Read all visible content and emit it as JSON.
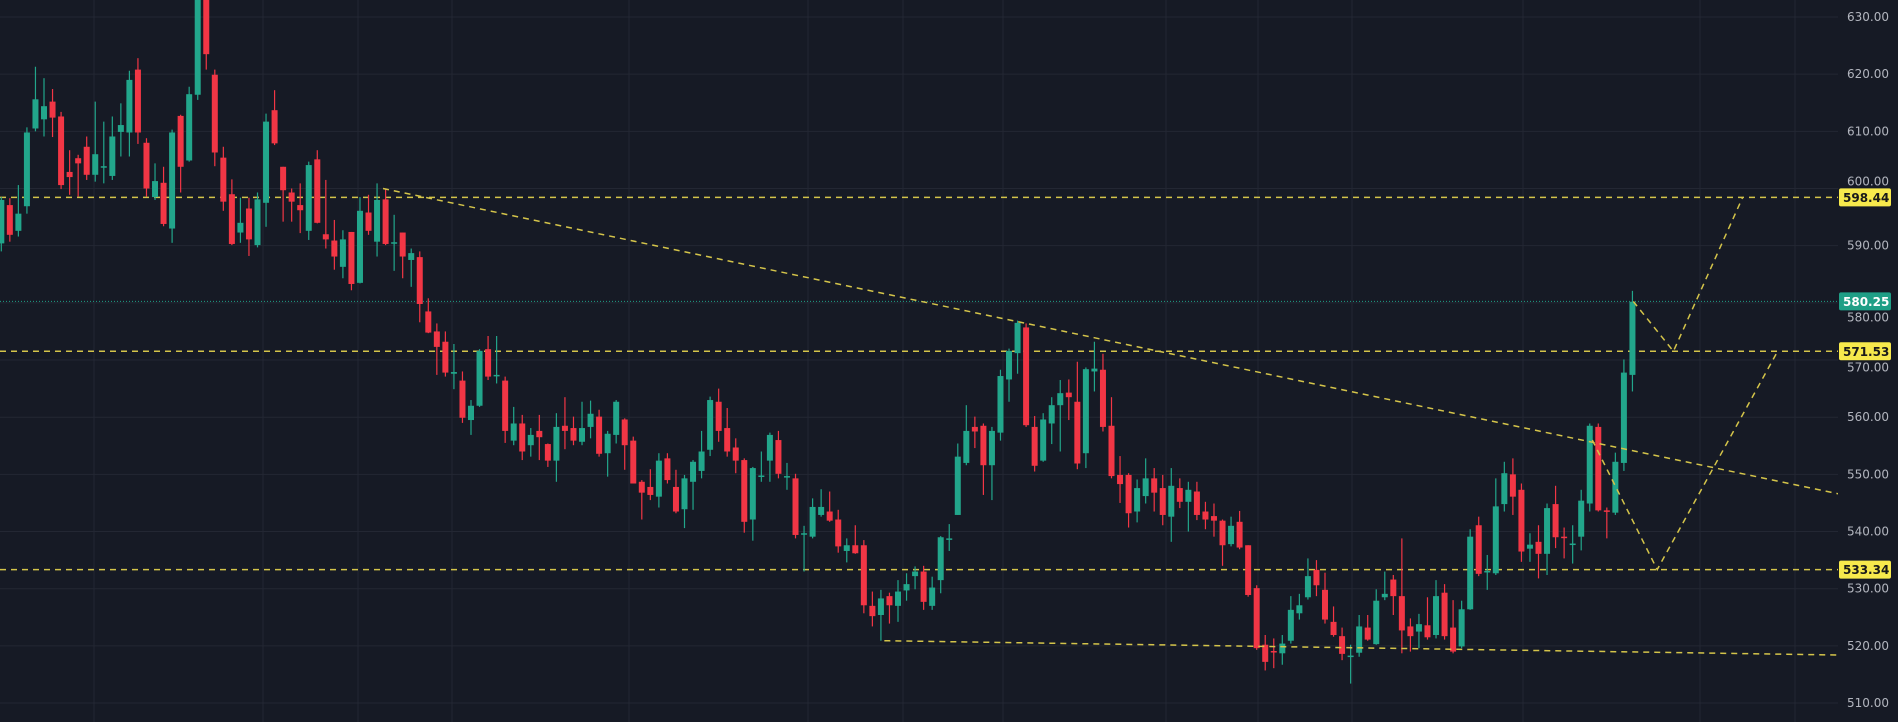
{
  "chart_data": {
    "type": "candlestick",
    "title": "",
    "xlabel": "",
    "ylabel": "",
    "ylim": [
      506,
      633
    ],
    "grid": true,
    "colors": {
      "background": "#161a25",
      "up": "#22a68b",
      "down": "#f23645",
      "grid": "#232733",
      "drawing": "#d4c44a",
      "tag_yellow": "#f7e94c",
      "tag_green": "#1f9f86",
      "axis_text": "#b2b5be"
    },
    "y_ticks": [
      "630.00",
      "620.00",
      "610.00",
      "600.00",
      "590.00",
      "580.00",
      "570.00",
      "560.00",
      "550.00",
      "540.00",
      "530.00",
      "520.00",
      "510.00"
    ],
    "price_tags": [
      {
        "value": 598.44,
        "label": "598.44",
        "style": "yellow"
      },
      {
        "value": 580.25,
        "label": "580.25",
        "style": "green"
      },
      {
        "value": 571.53,
        "label": "571.53",
        "style": "yellow"
      },
      {
        "value": 533.34,
        "label": "533.34",
        "style": "yellow"
      }
    ],
    "current_price": 580.25,
    "horizontal_levels": [
      598.44,
      571.53,
      533.34
    ],
    "trendlines": [
      {
        "name": "descending-resistance",
        "points": [
          [
            44.7,
            600.0
          ],
          [
            215.1,
            546.6
          ]
        ]
      },
      {
        "name": "support",
        "points": [
          [
            103.4,
            520.9
          ],
          [
            215.1,
            518.4
          ]
        ]
      },
      {
        "name": "projection-upper",
        "points": [
          [
            191.1,
            580.25
          ],
          [
            195.8,
            571.53
          ],
          [
            203.9,
            598.44
          ]
        ]
      },
      {
        "name": "projection-lower",
        "points": [
          [
            186.3,
            556.0
          ],
          [
            193.9,
            533.34
          ],
          [
            208.0,
            571.53
          ]
        ]
      }
    ],
    "ohlc_format": [
      "open",
      "high",
      "low",
      "close"
    ],
    "candles": [
      [
        590.4,
        598.5,
        589,
        598
      ],
      [
        597.1,
        598.3,
        590.7,
        591.9
      ],
      [
        592.6,
        600.6,
        591.6,
        595.6
      ],
      [
        596.9,
        610.7,
        595.6,
        609.8
      ],
      [
        610.5,
        621.3,
        610,
        615.6
      ],
      [
        612.1,
        619.3,
        609.1,
        614.4
      ],
      [
        615.2,
        617.4,
        609,
        612.4
      ],
      [
        612.6,
        613.4,
        599.9,
        600.6
      ],
      [
        602.9,
        606.7,
        598.9,
        602.0
      ],
      [
        605.3,
        605.9,
        598.6,
        604.4
      ],
      [
        607.3,
        609.1,
        601.5,
        602.4
      ],
      [
        602.4,
        615.2,
        601.2,
        606.0
      ],
      [
        603.7,
        611.7,
        600.9,
        603.9
      ],
      [
        602.2,
        612.6,
        601.5,
        609.1
      ],
      [
        609.9,
        614.9,
        605.6,
        611.1
      ],
      [
        609.8,
        620.6,
        605.6,
        619.0
      ],
      [
        620.8,
        622.8,
        607.8,
        609.8
      ],
      [
        608.0,
        608.8,
        598.6,
        600.0
      ],
      [
        598.5,
        604.4,
        598.0,
        601.3
      ],
      [
        601.0,
        603.8,
        593.4,
        593.8
      ],
      [
        593.0,
        610.3,
        590.5,
        609.8
      ],
      [
        612.7,
        612.9,
        599.3,
        603.8
      ],
      [
        604.9,
        617.8,
        604.7,
        616.5
      ],
      [
        616.4,
        636,
        615.5,
        634
      ],
      [
        636,
        637,
        620.8,
        623.5
      ],
      [
        619.9,
        620.8,
        603.9,
        606.3
      ],
      [
        605.4,
        607.3,
        596.1,
        597.7
      ],
      [
        599.0,
        601.6,
        590.1,
        590.3
      ],
      [
        592.3,
        598.4,
        590.5,
        594.0
      ],
      [
        596.5,
        598.4,
        588.2,
        591.1
      ],
      [
        590.1,
        599.3,
        589.7,
        598.1
      ],
      [
        597.5,
        613.1,
        593.3,
        611.7
      ],
      [
        613.7,
        617.2,
        607.6,
        607.9
      ],
      [
        603.8,
        603.8,
        594.2,
        599.7
      ],
      [
        599.3,
        600.0,
        594.2,
        597.7
      ],
      [
        597.1,
        600.9,
        592.2,
        596.2
      ],
      [
        592.6,
        604.7,
        591.0,
        604.1
      ],
      [
        605.1,
        606.7,
        593.9,
        594.0
      ],
      [
        592.0,
        601.5,
        589.5,
        591.1
      ],
      [
        590.9,
        594.5,
        585.8,
        588.1
      ],
      [
        586.3,
        592.7,
        584.3,
        591.1
      ],
      [
        592.4,
        592.4,
        582.2,
        583.3
      ],
      [
        583.5,
        598.5,
        583.4,
        596.1
      ],
      [
        595.8,
        598.9,
        591.9,
        592.6
      ],
      [
        590.7,
        600.9,
        588.1,
        598.0
      ],
      [
        598.1,
        600.0,
        590.1,
        590.3
      ],
      [
        590.5,
        595.4,
        585.6,
        590.6
      ],
      [
        592.3,
        592.3,
        584.3,
        588.1
      ],
      [
        587.5,
        589.5,
        582.8,
        588.7
      ],
      [
        588.0,
        589.0,
        576.6,
        579.8
      ],
      [
        578.5,
        580.8,
        574.7,
        574.8
      ],
      [
        575.0,
        576.4,
        567.4,
        572.3
      ],
      [
        573.2,
        575.0,
        567.1,
        567.8
      ],
      [
        567.6,
        572.8,
        564.9,
        567.9
      ],
      [
        566.4,
        568.0,
        559.0,
        559.9
      ],
      [
        559.5,
        563.0,
        556.9,
        562.0
      ],
      [
        562.0,
        571.9,
        561.8,
        571.6
      ],
      [
        571.9,
        574.2,
        566.5,
        567.1
      ],
      [
        567.2,
        574.2,
        565.9,
        567.4
      ],
      [
        566.4,
        567.1,
        555.5,
        557.6
      ],
      [
        555.9,
        561.8,
        555.1,
        558.9
      ],
      [
        558.9,
        560.4,
        552.5,
        554.0
      ],
      [
        555.1,
        558.1,
        553.1,
        556.9
      ],
      [
        557.6,
        560.4,
        552.5,
        556.5
      ],
      [
        555.3,
        555.4,
        551.3,
        552.4
      ],
      [
        552.4,
        560.7,
        548.7,
        558.3
      ],
      [
        558.5,
        563.5,
        554.4,
        557.6
      ],
      [
        558.1,
        560.1,
        555.1,
        555.9
      ],
      [
        555.7,
        562.7,
        555.1,
        558.1
      ],
      [
        558.3,
        562.9,
        556.3,
        560.6
      ],
      [
        560.1,
        561.3,
        553.1,
        553.6
      ],
      [
        553.7,
        557.6,
        549.6,
        557.1
      ],
      [
        556.9,
        563.0,
        555.4,
        562.7
      ],
      [
        559.6,
        559.8,
        550.8,
        555.1
      ],
      [
        555.9,
        556.6,
        548.4,
        548.4
      ],
      [
        548.7,
        549.0,
        542.1,
        546.8
      ],
      [
        547.8,
        550.9,
        545.5,
        546.4
      ],
      [
        546.1,
        553.7,
        544.2,
        552.4
      ],
      [
        552.8,
        553.7,
        548.4,
        549.0
      ],
      [
        547.8,
        550.8,
        543.2,
        543.5
      ],
      [
        543.9,
        549.9,
        540.6,
        549.3
      ],
      [
        548.7,
        552.5,
        543.8,
        552.2
      ],
      [
        550.6,
        557.6,
        549.3,
        554.0
      ],
      [
        554.3,
        563.6,
        553.2,
        563.0
      ],
      [
        562.7,
        565.0,
        555.7,
        557.6
      ],
      [
        558.1,
        561.6,
        553.1,
        554.0
      ],
      [
        554.7,
        556.3,
        550.2,
        552.4
      ],
      [
        552.5,
        552.8,
        539.8,
        541.7
      ],
      [
        542.1,
        551.3,
        538.4,
        551.1
      ],
      [
        549.6,
        554.0,
        548.7,
        549.8
      ],
      [
        552.4,
        557.3,
        548.7,
        556.9
      ],
      [
        556.0,
        557.6,
        549.3,
        550.1
      ],
      [
        549.5,
        552.0,
        547.3,
        549.7
      ],
      [
        549.3,
        550.1,
        538.8,
        539.4
      ],
      [
        539.6,
        541.0,
        533.0,
        539.7
      ],
      [
        539.1,
        545.8,
        538.8,
        544.3
      ],
      [
        542.9,
        547.4,
        542.6,
        544.3
      ],
      [
        543.5,
        547.0,
        541.7,
        541.9
      ],
      [
        542.1,
        543.8,
        536.3,
        537.4
      ],
      [
        536.6,
        538.8,
        534.6,
        537.6
      ],
      [
        537.6,
        541.1,
        536.1,
        536.2
      ],
      [
        537.6,
        538.5,
        525.7,
        527.1
      ],
      [
        527.0,
        529.5,
        523.4,
        525.2
      ],
      [
        525.4,
        529.8,
        520.9,
        528.3
      ],
      [
        528.7,
        529.3,
        523.9,
        527.1
      ],
      [
        527.0,
        531.5,
        524.2,
        529.5
      ],
      [
        529.7,
        532.7,
        527.9,
        530.8
      ],
      [
        532.2,
        533.9,
        529.9,
        533.0
      ],
      [
        533.0,
        534.0,
        526.3,
        527.7
      ],
      [
        527.0,
        532.1,
        526.3,
        530.2
      ],
      [
        531.5,
        539.2,
        529.2,
        539.0
      ],
      [
        538.6,
        541.3,
        536.6,
        538.8
      ],
      [
        542.9,
        555.4,
        542.9,
        553.1
      ],
      [
        552.0,
        562.1,
        551.6,
        557.6
      ],
      [
        558.3,
        560.1,
        554.6,
        557.5
      ],
      [
        558.5,
        558.9,
        546.4,
        551.6
      ],
      [
        551.6,
        558.3,
        545.5,
        557.6
      ],
      [
        557.3,
        568.3,
        555.9,
        567.2
      ],
      [
        566.6,
        572.0,
        562.7,
        571.6
      ],
      [
        571.2,
        576.9,
        567.6,
        576.5
      ],
      [
        575.7,
        576.4,
        558.3,
        558.6
      ],
      [
        558.3,
        560.2,
        550.5,
        551.5
      ],
      [
        552.4,
        560.7,
        552.2,
        559.6
      ],
      [
        558.9,
        563.5,
        555.3,
        562.1
      ],
      [
        562.1,
        566.5,
        554.0,
        564.2
      ],
      [
        564.3,
        566.6,
        559.5,
        563.5
      ],
      [
        562.7,
        569.7,
        550.9,
        551.9
      ],
      [
        553.7,
        568.7,
        551.1,
        568.4
      ],
      [
        568.0,
        573.2,
        564.5,
        568.5
      ],
      [
        568.3,
        571.1,
        557.5,
        558.3
      ],
      [
        558.5,
        563.5,
        549.3,
        549.7
      ],
      [
        549.9,
        553.2,
        545.0,
        548.3
      ],
      [
        549.9,
        550.2,
        540.7,
        543.2
      ],
      [
        543.5,
        549.1,
        541.6,
        547.6
      ],
      [
        546.2,
        552.8,
        544.9,
        549.3
      ],
      [
        549.3,
        551.1,
        543.5,
        546.8
      ],
      [
        547.6,
        549.9,
        541.1,
        542.9
      ],
      [
        542.6,
        551.1,
        538.2,
        548.0
      ],
      [
        547.6,
        549.3,
        544.1,
        545.2
      ],
      [
        545.2,
        548.7,
        540.0,
        547.3
      ],
      [
        547.0,
        548.7,
        542.0,
        542.9
      ],
      [
        543.5,
        545.2,
        540.4,
        542.1
      ],
      [
        542.7,
        544.9,
        539.1,
        541.9
      ],
      [
        541.9,
        542.1,
        534.0,
        537.6
      ],
      [
        537.8,
        542.6,
        537.4,
        541.0
      ],
      [
        541.7,
        543.6,
        536.9,
        537.2
      ],
      [
        537.6,
        537.6,
        528.6,
        528.9
      ],
      [
        530.1,
        530.6,
        519.3,
        519.6
      ],
      [
        520.2,
        521.9,
        515.7,
        517.2
      ],
      [
        519.1,
        521.3,
        516.1,
        518.9
      ],
      [
        518.7,
        521.9,
        516.7,
        520.4
      ],
      [
        520.9,
        528.7,
        520.4,
        526.3
      ],
      [
        525.7,
        529.1,
        524.6,
        527.1
      ],
      [
        528.5,
        535.3,
        528.1,
        532.2
      ],
      [
        533.3,
        535.0,
        528.7,
        530.6
      ],
      [
        529.8,
        532.8,
        523.9,
        524.6
      ],
      [
        524.2,
        526.9,
        521.6,
        521.9
      ],
      [
        521.7,
        523.2,
        517.5,
        518.6
      ],
      [
        518.1,
        520.2,
        513.4,
        518.3
      ],
      [
        518.8,
        525.4,
        518.1,
        523.4
      ],
      [
        523.2,
        525.4,
        520.9,
        521.1
      ],
      [
        520.3,
        529.9,
        520.2,
        527.9
      ],
      [
        528.5,
        533.0,
        528.0,
        529.1
      ],
      [
        531.6,
        532.4,
        525.4,
        528.7
      ],
      [
        528.7,
        538.8,
        518.7,
        522.7
      ],
      [
        523.4,
        524.8,
        519.0,
        521.7
      ],
      [
        522.5,
        525.6,
        519.6,
        523.8
      ],
      [
        523.6,
        528.5,
        521.1,
        521.5
      ],
      [
        521.9,
        531.5,
        521.3,
        528.7
      ],
      [
        529.3,
        530.8,
        521.1,
        521.7
      ],
      [
        523.2,
        528.0,
        518.7,
        519.0
      ],
      [
        519.9,
        527.9,
        519.6,
        526.4
      ],
      [
        526.4,
        540.4,
        526.3,
        539.1
      ],
      [
        541.1,
        542.6,
        532.2,
        532.6
      ],
      [
        532.9,
        535.9,
        529.8,
        533.1
      ],
      [
        532.7,
        549.3,
        532.4,
        544.4
      ],
      [
        544.8,
        552.2,
        543.5,
        550.2
      ],
      [
        550.0,
        552.8,
        542.9,
        546.1
      ],
      [
        547.3,
        548.4,
        534.7,
        536.5
      ],
      [
        537.0,
        539.7,
        534.7,
        537.7
      ],
      [
        538.2,
        541.1,
        531.8,
        536.1
      ],
      [
        536.1,
        544.9,
        532.4,
        544.1
      ],
      [
        544.8,
        548.0,
        537.1,
        539.0
      ],
      [
        539.1,
        540.7,
        535.3,
        538.9
      ],
      [
        537.7,
        541.1,
        534.4,
        537.9
      ],
      [
        539.1,
        547.3,
        536.7,
        545.4
      ],
      [
        544.9,
        558.9,
        543.5,
        558.5
      ],
      [
        558.3,
        558.9,
        543.5,
        543.7
      ],
      [
        543.7,
        544.2,
        538.8,
        543.5
      ],
      [
        543.3,
        553.8,
        542.9,
        552.2
      ],
      [
        552.0,
        570.1,
        550.6,
        567.8
      ],
      [
        567.4,
        582.1,
        564.5,
        580.2
      ]
    ]
  }
}
